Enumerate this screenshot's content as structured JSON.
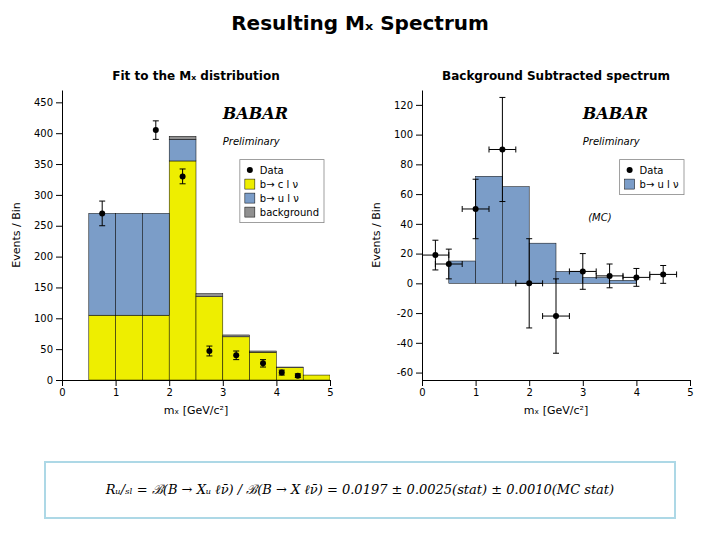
{
  "title": "Resulting Mₓ Spectrum",
  "annotations": [
    "Rᵤ/ₛₗ = ℬ(B → Xᵤ ℓν̄) / ℬ(B → X ℓν̄) = 0.0197 ± 0.0025(stat) ± 0.0010(MC stat)"
  ],
  "chart_data": [
    {
      "type": "bar",
      "stacked": true,
      "title": "Fit to the Mₓ distribution",
      "x_label": "mₓ [GeV/c²]",
      "y_label": "Events / Bin",
      "bins": [
        0.0,
        0.5,
        1.0,
        1.5,
        2.0,
        2.5,
        3.0,
        3.5,
        4.0,
        4.5,
        5.0
      ],
      "xlim": [
        0,
        5
      ],
      "xticks": [
        0,
        1,
        2,
        3,
        4,
        5
      ],
      "ylim": [
        0,
        470
      ],
      "yticks": [
        0,
        50,
        100,
        150,
        200,
        250,
        300,
        350,
        400,
        450
      ],
      "legend": "upper right",
      "annotations": [
        "BABAR",
        "Preliminary"
      ],
      "series": [
        {
          "name": "Data",
          "type": "scatter",
          "color": "#000000",
          "x": [
            0.75,
            1.75,
            2.25,
            2.75,
            3.25,
            3.75,
            4.1,
            4.4
          ],
          "values": [
            270,
            405,
            330,
            47,
            40,
            27,
            12,
            7
          ],
          "errors": [
            20,
            15,
            12,
            8,
            7,
            6,
            4,
            3
          ]
        },
        {
          "name": "b→ c l ν",
          "color": "#EEEE00",
          "values": [
            0,
            105,
            105,
            105,
            355,
            135,
            70,
            45,
            20,
            8
          ]
        },
        {
          "name": "b→ u l ν",
          "color": "#7B9DC8",
          "values": [
            0,
            165,
            165,
            165,
            35,
            0,
            0,
            0,
            0,
            0
          ]
        },
        {
          "name": "background",
          "color": "#909090",
          "values": [
            0,
            0,
            0,
            0,
            5,
            5,
            3,
            2,
            1,
            0
          ]
        }
      ]
    },
    {
      "type": "bar",
      "title": "Background Subtracted spectrum",
      "x_label": "mₓ [GeV/c²]",
      "y_label": "Events / Bin",
      "bins": [
        0.0,
        0.5,
        1.0,
        1.5,
        2.0,
        2.5,
        3.0,
        3.5,
        4.0,
        4.5,
        5.0
      ],
      "xlim": [
        0,
        5
      ],
      "xticks": [
        0,
        1,
        2,
        3,
        4,
        5
      ],
      "ylim": [
        -65,
        130
      ],
      "yticks": [
        -60,
        -40,
        -20,
        0,
        20,
        40,
        60,
        80,
        100,
        120
      ],
      "legend": "upper right",
      "annotations": [
        "BABAR",
        "Preliminary",
        "(MC)"
      ],
      "series": [
        {
          "name": "Data",
          "type": "scatter",
          "color": "#000000",
          "x": [
            0.25,
            0.5,
            1.0,
            1.5,
            2.0,
            2.5,
            3.0,
            3.5,
            4.0,
            4.5
          ],
          "values": [
            19,
            13,
            50,
            90,
            0,
            -22,
            8,
            5,
            4,
            6
          ],
          "errors": [
            10,
            10,
            20,
            35,
            30,
            25,
            12,
            8,
            6,
            6
          ],
          "x_errors": [
            0.25,
            0.25,
            0.25,
            0.25,
            0.25,
            0.25,
            0.25,
            0.25,
            0.25,
            0.25
          ]
        },
        {
          "name": "b→ u l ν",
          "color": "#7B9DC8",
          "values": [
            0,
            15,
            72,
            65,
            27,
            8,
            4,
            2,
            0,
            0
          ]
        }
      ]
    }
  ]
}
